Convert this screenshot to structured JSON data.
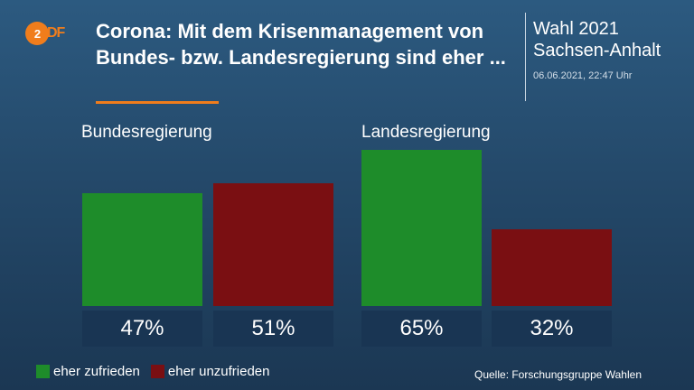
{
  "header": {
    "logo_text": "ZDF",
    "title": "Corona: Mit dem Krisenmanagement von Bundes- bzw. Landesregierung sind eher ...",
    "side_title_line1": "Wahl 2021",
    "side_title_line2": "Sachsen-Anhalt",
    "timestamp": "06.06.2021, 22:47 Uhr"
  },
  "colors": {
    "accent": "#f07d1c",
    "zufrieden": "#1e8c2a",
    "unzufrieden": "#7a0f12",
    "label_box": "#193553"
  },
  "chart_data": {
    "type": "bar",
    "title": "Corona: Mit dem Krisenmanagement von Bundes- bzw. Landesregierung sind eher ...",
    "categories": [
      "Bundesregierung",
      "Landesregierung"
    ],
    "series": [
      {
        "name": "eher zufrieden",
        "values": [
          47,
          65
        ],
        "labels": [
          "47%",
          "65%"
        ]
      },
      {
        "name": "eher unzufrieden",
        "values": [
          51,
          32
        ],
        "labels": [
          "51%",
          "32%"
        ]
      }
    ],
    "unit": "%",
    "ylim": [
      0,
      65
    ],
    "grid": false,
    "legend_position": "bottom-left"
  },
  "legend": {
    "zufrieden": "eher zufrieden",
    "unzufrieden": "eher unzufrieden"
  },
  "footer": {
    "source": "Quelle: Forschungsgruppe Wahlen"
  }
}
